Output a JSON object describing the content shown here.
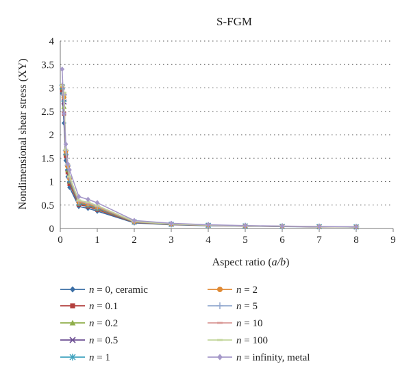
{
  "chart_data": {
    "type": "line",
    "title": "S-FGM",
    "xlabel_prefix": "Aspect ratio (",
    "xlabel_var": "a/b",
    "xlabel_suffix": ")",
    "ylabel": "Nondimensional shear stress (XY)",
    "xlim": [
      0,
      9
    ],
    "ylim": [
      0,
      4
    ],
    "xticks": [
      "0",
      "1",
      "2",
      "3",
      "4",
      "5",
      "6",
      "7",
      "8",
      "9"
    ],
    "yticks": [
      "0",
      "0.5",
      "1",
      "1.5",
      "2",
      "2.5",
      "3",
      "3.5",
      "4"
    ],
    "grid": "horizontal-dotted",
    "legend_position": "bottom",
    "x": [
      0.05,
      0.1,
      0.15,
      0.2,
      0.25,
      0.5,
      0.75,
      1,
      2,
      3,
      4,
      5,
      6,
      7,
      8
    ],
    "series": [
      {
        "name_var": "n",
        "name_rest": " = 0, ceramic",
        "color": "#3a6ea5",
        "marker": "diamond",
        "values": [
          2.88,
          2.25,
          1.45,
          1.1,
          0.88,
          0.47,
          0.43,
          0.37,
          0.12,
          0.08,
          0.06,
          0.05,
          0.04,
          0.035,
          0.03
        ]
      },
      {
        "name_var": "n",
        "name_rest": " = 0.1",
        "color": "#b3403e",
        "marker": "square",
        "values": [
          2.95,
          2.45,
          1.55,
          1.2,
          0.95,
          0.51,
          0.47,
          0.4,
          0.13,
          0.085,
          0.065,
          0.052,
          0.043,
          0.037,
          0.032
        ]
      },
      {
        "name_var": "n",
        "name_rest": " = 0.2",
        "color": "#8fae4a",
        "marker": "triangle",
        "values": [
          3.0,
          2.6,
          1.6,
          1.25,
          1.0,
          0.53,
          0.49,
          0.42,
          0.135,
          0.088,
          0.067,
          0.053,
          0.044,
          0.038,
          0.033
        ]
      },
      {
        "name_var": "n",
        "name_rest": " = 0.5",
        "color": "#6d4f93",
        "marker": "x",
        "values": [
          3.02,
          2.7,
          1.62,
          1.28,
          1.02,
          0.54,
          0.5,
          0.43,
          0.138,
          0.09,
          0.068,
          0.054,
          0.045,
          0.038,
          0.033
        ]
      },
      {
        "name_var": "n",
        "name_rest": " = 1",
        "color": "#3fa2be",
        "marker": "star",
        "values": [
          3.03,
          2.75,
          1.63,
          1.3,
          1.04,
          0.55,
          0.51,
          0.44,
          0.14,
          0.09,
          0.069,
          0.055,
          0.045,
          0.039,
          0.034
        ]
      },
      {
        "name_var": "n",
        "name_rest": " = 2",
        "color": "#e08a34",
        "marker": "circle",
        "values": [
          3.04,
          2.8,
          1.64,
          1.32,
          1.06,
          0.56,
          0.52,
          0.45,
          0.142,
          0.092,
          0.07,
          0.056,
          0.046,
          0.039,
          0.034
        ]
      },
      {
        "name_var": "n",
        "name_rest": " = 5",
        "color": "#93a9cf",
        "marker": "plus",
        "values": [
          3.05,
          2.85,
          1.66,
          1.35,
          1.08,
          0.58,
          0.54,
          0.47,
          0.146,
          0.094,
          0.071,
          0.057,
          0.047,
          0.04,
          0.035
        ]
      },
      {
        "name_var": "n",
        "name_rest": " = 10",
        "color": "#d99896",
        "marker": "dash",
        "values": [
          3.05,
          2.88,
          1.67,
          1.36,
          1.1,
          0.59,
          0.55,
          0.48,
          0.148,
          0.095,
          0.072,
          0.058,
          0.048,
          0.04,
          0.035
        ]
      },
      {
        "name_var": "n",
        "name_rest": " = 100",
        "color": "#c3d69b",
        "marker": "dash",
        "values": [
          3.05,
          2.9,
          1.68,
          1.37,
          1.11,
          0.6,
          0.56,
          0.49,
          0.15,
          0.096,
          0.073,
          0.058,
          0.048,
          0.041,
          0.035
        ]
      },
      {
        "name_var": "n",
        "name_rest": " = infinity, metal",
        "color": "#a598c9",
        "marker": "diamond",
        "values": [
          3.4,
          2.45,
          1.8,
          1.38,
          1.25,
          0.68,
          0.62,
          0.55,
          0.17,
          0.11,
          0.08,
          0.062,
          0.05,
          0.043,
          0.037
        ]
      }
    ]
  }
}
